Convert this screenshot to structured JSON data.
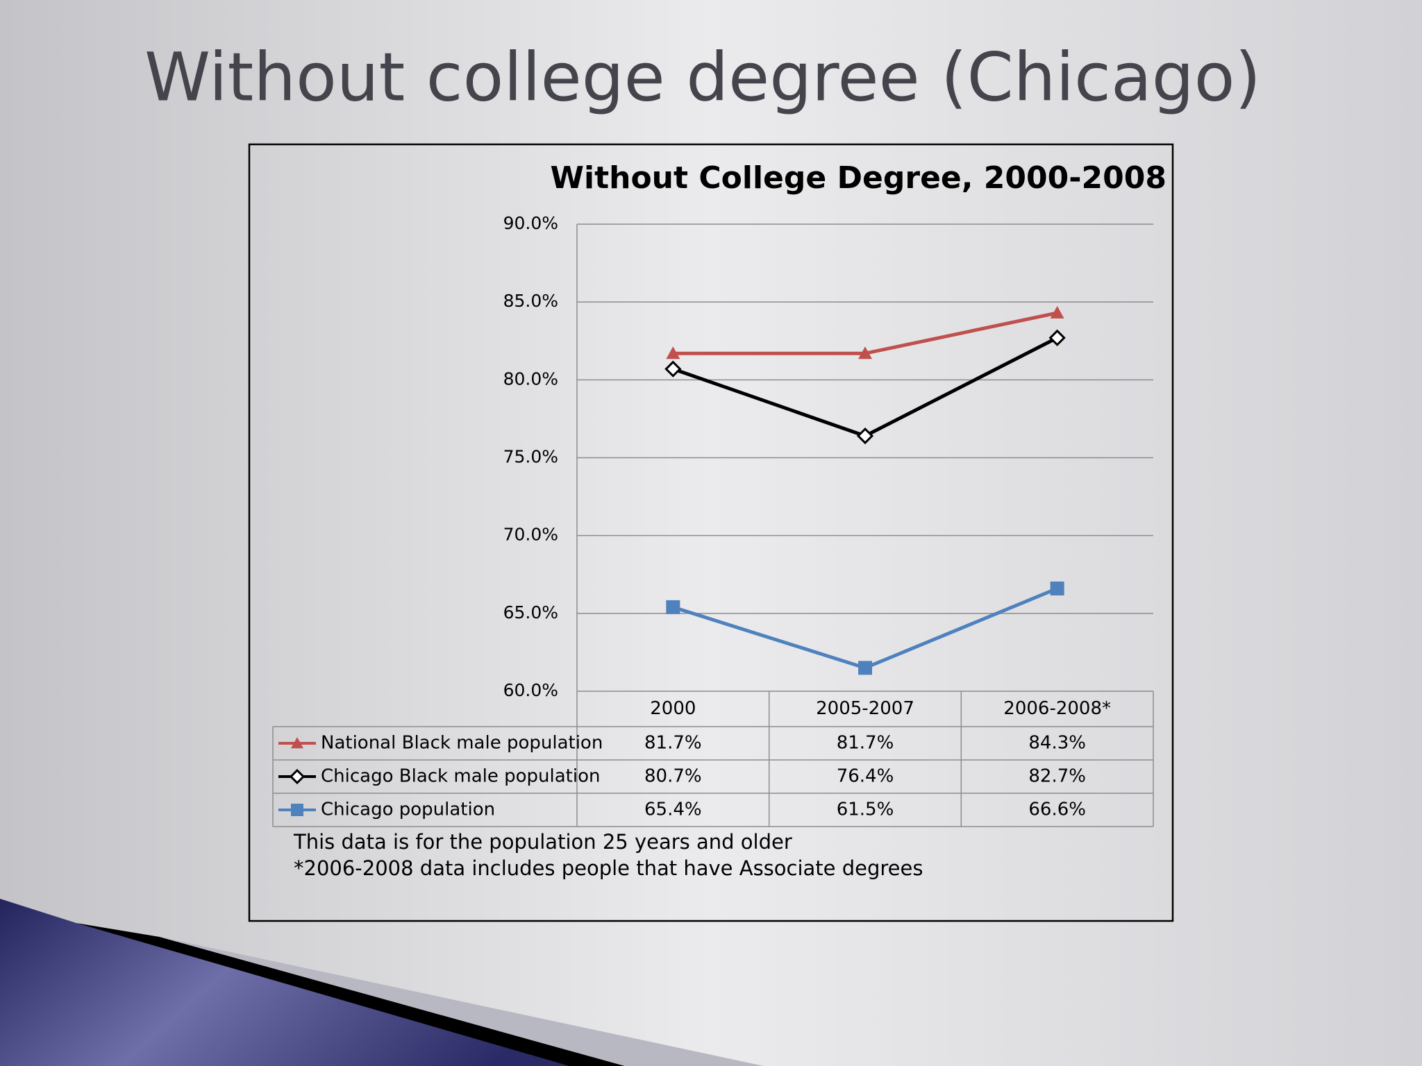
{
  "slide_title": "Without college degree (Chicago)",
  "chart_data": {
    "type": "line",
    "title": "Without College Degree, 2000-2008",
    "categories": [
      "2000",
      "2005-2007",
      "2006-2008*"
    ],
    "series": [
      {
        "name": "National Black male population",
        "color": "#c0504d",
        "marker": "triangle",
        "values": [
          81.7,
          81.7,
          84.3
        ],
        "value_labels": [
          "81.7%",
          "81.7%",
          "84.3%"
        ]
      },
      {
        "name": "Chicago Black male population",
        "color": "#000000",
        "marker": "diamond",
        "values": [
          80.7,
          76.4,
          82.7
        ],
        "value_labels": [
          "80.7%",
          "76.4%",
          "82.7%"
        ]
      },
      {
        "name": "Chicago population",
        "color": "#4f81bd",
        "marker": "square",
        "values": [
          65.4,
          61.5,
          66.6
        ],
        "value_labels": [
          "65.4%",
          "61.5%",
          "66.6%"
        ]
      }
    ],
    "ylim": [
      60,
      90
    ],
    "yticks": [
      {
        "value": 60,
        "label": "60.0%"
      },
      {
        "value": 65,
        "label": "65.0%"
      },
      {
        "value": 70,
        "label": "70.0%"
      },
      {
        "value": 75,
        "label": "75.0%"
      },
      {
        "value": 80,
        "label": "80.0%"
      },
      {
        "value": 85,
        "label": "85.0%"
      },
      {
        "value": 90,
        "label": "90.0%"
      }
    ],
    "grid": true,
    "data_table": true,
    "notes": [
      "This data is for the population 25 years and older",
      "*2006-2008 data includes people that have Associate degrees"
    ]
  }
}
